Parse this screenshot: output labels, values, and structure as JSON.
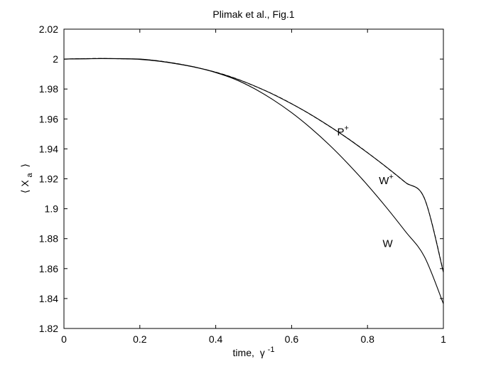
{
  "chart_data": {
    "type": "line",
    "title": "Plimak et al., Fig.1",
    "xlabel": "time,",
    "xlabel_symbol": "γ",
    "xlabel_sup": "-1",
    "ylabel_left": "⟨ X",
    "ylabel_sub": "a",
    "ylabel_right": "⟩",
    "xlim": [
      0,
      1
    ],
    "ylim": [
      1.82,
      2.02
    ],
    "xticks": [
      0,
      0.2,
      0.4,
      0.6,
      0.8,
      1
    ],
    "xtick_labels": [
      "0",
      "0.2",
      "0.4",
      "0.6",
      "0.8",
      "1"
    ],
    "yticks": [
      1.82,
      1.84,
      1.86,
      1.88,
      1.9,
      1.92,
      1.94,
      1.96,
      1.98,
      2,
      2.02
    ],
    "ytick_labels": [
      "1.82",
      "1.84",
      "1.86",
      "1.88",
      "1.9",
      "1.92",
      "1.94",
      "1.96",
      "1.98",
      "2",
      "2.02"
    ],
    "grid": false,
    "series": [
      {
        "label": "P",
        "label_sup": "+",
        "style": "solid",
        "x": [
          0,
          0.05,
          0.1,
          0.15,
          0.2,
          0.25,
          0.3,
          0.35,
          0.4,
          0.45,
          0.5,
          0.55,
          0.6,
          0.65,
          0.7,
          0.75,
          0.8,
          0.85,
          0.9,
          0.95,
          1
        ],
        "y": [
          2.0,
          2.0002,
          2.0004,
          2.0003,
          2.0,
          1.9987,
          1.9968,
          1.9944,
          1.9912,
          1.9872,
          1.9823,
          1.9766,
          1.9701,
          1.963,
          1.9551,
          1.9466,
          1.9374,
          1.9278,
          1.9176,
          1.9069,
          1.8575
        ]
      },
      {
        "label": "W",
        "label_sup": "+",
        "style": "dashed",
        "x": [
          0,
          0.05,
          0.1,
          0.15,
          0.2,
          0.25,
          0.3,
          0.35,
          0.4,
          0.45,
          0.5,
          0.55,
          0.6,
          0.65,
          0.7,
          0.75,
          0.8,
          0.85,
          0.9,
          0.95,
          1
        ],
        "y": [
          2.0,
          2.0003,
          2.0004,
          2.0002,
          1.9999,
          1.9988,
          1.9969,
          1.9943,
          1.9913,
          1.9873,
          1.9822,
          1.9767,
          1.9702,
          1.9629,
          1.955,
          1.9467,
          1.9375,
          1.9277,
          1.9175,
          1.907,
          1.858
        ]
      },
      {
        "label": "W",
        "label_sup": "",
        "style": "solid",
        "x": [
          0,
          0.05,
          0.1,
          0.15,
          0.2,
          0.25,
          0.3,
          0.35,
          0.4,
          0.45,
          0.5,
          0.55,
          0.6,
          0.65,
          0.7,
          0.75,
          0.8,
          0.85,
          0.9,
          0.95,
          1
        ],
        "y": [
          2.0,
          2.0002,
          2.0003,
          2.0002,
          1.9998,
          1.9986,
          1.9967,
          1.9943,
          1.991,
          1.9866,
          1.9805,
          1.973,
          1.9642,
          1.954,
          1.9425,
          1.9297,
          1.9158,
          1.9008,
          1.8848,
          1.868,
          1.8365
        ]
      }
    ],
    "annotations": [
      {
        "text": "P",
        "sup": "+",
        "x": 0.72,
        "y": 1.949
      },
      {
        "text": "W",
        "sup": "+",
        "x": 0.83,
        "y": 1.9165
      },
      {
        "text": "W",
        "sup": "",
        "x": 0.84,
        "y": 1.8745
      }
    ]
  }
}
